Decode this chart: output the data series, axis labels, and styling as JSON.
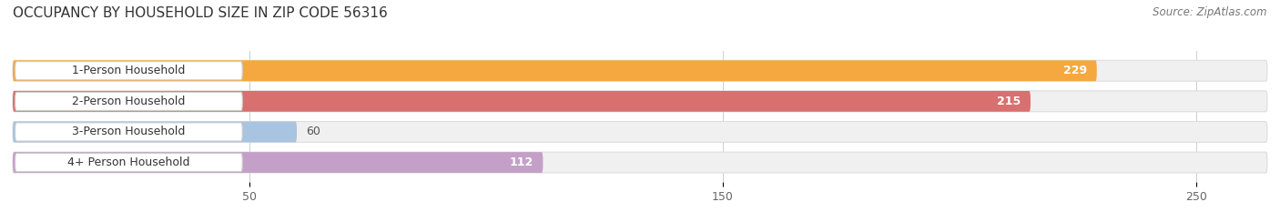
{
  "title": "OCCUPANCY BY HOUSEHOLD SIZE IN ZIP CODE 56316",
  "source": "Source: ZipAtlas.com",
  "categories": [
    "1-Person Household",
    "2-Person Household",
    "3-Person Household",
    "4+ Person Household"
  ],
  "values": [
    229,
    215,
    60,
    112
  ],
  "bar_colors": [
    "#F5A840",
    "#D97070",
    "#A8C4E0",
    "#C4A0C8"
  ],
  "bar_bg_color": "#F0F0F0",
  "xlim": [
    0,
    265
  ],
  "xticks": [
    50,
    150,
    250
  ],
  "title_fontsize": 11,
  "source_fontsize": 8.5,
  "label_fontsize": 9,
  "value_fontsize": 9,
  "bar_height": 0.68,
  "figsize": [
    14.06,
    2.33
  ],
  "dpi": 100
}
